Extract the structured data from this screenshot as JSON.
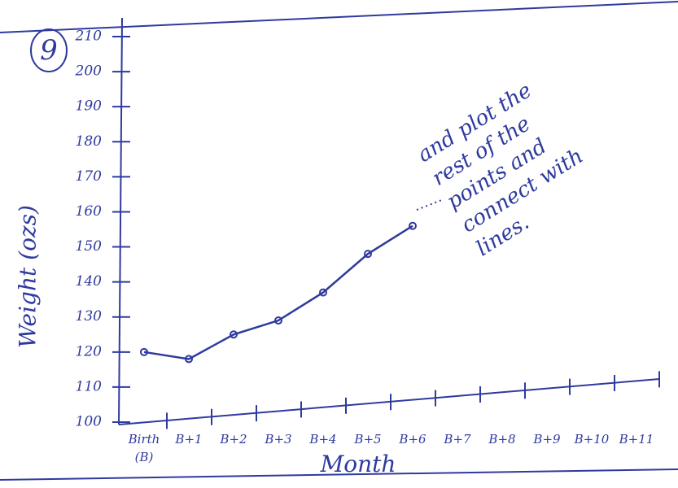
{
  "page_number": "9",
  "chart_data": {
    "type": "line",
    "x_label": "Month",
    "y_label": "Weight (ozs)",
    "categories": [
      "Birth (B)",
      "B+1",
      "B+2",
      "B+3",
      "B+4",
      "B+5",
      "B+6",
      "B+7",
      "B+8",
      "B+9",
      "B+10",
      "B+11"
    ],
    "values": [
      120,
      118,
      125,
      129,
      137,
      148,
      156,
      null,
      null,
      null,
      null,
      null
    ],
    "color": "#2e3a9e",
    "ylim": [
      100,
      210
    ],
    "yticks": [
      100,
      110,
      120,
      130,
      140,
      150,
      160,
      170,
      180,
      190,
      200,
      210
    ],
    "annotation_lines": [
      "and plot the",
      "rest of the",
      "points and",
      "connect with",
      "lines."
    ]
  }
}
